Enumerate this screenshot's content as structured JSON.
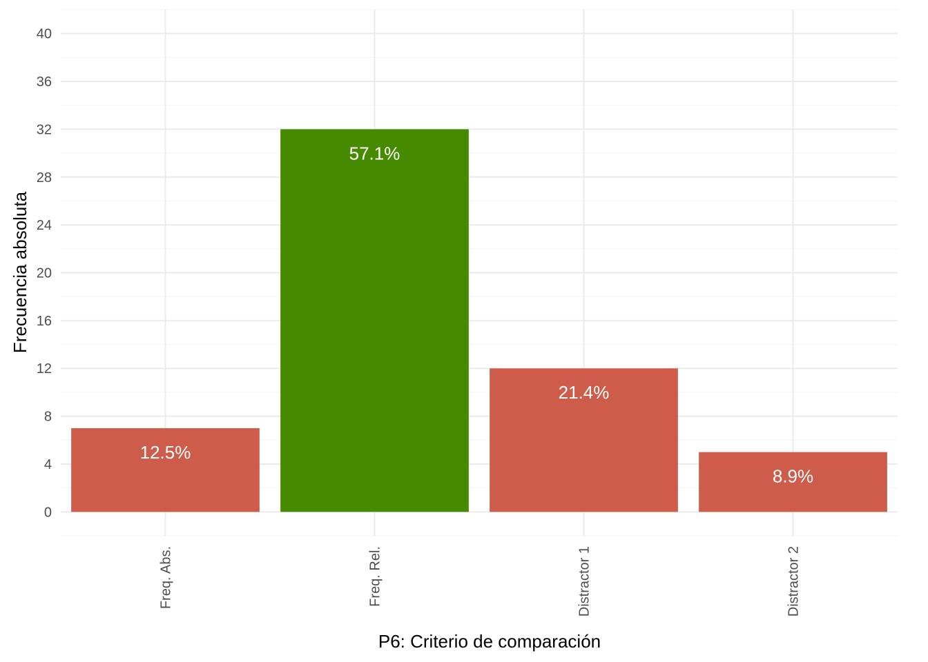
{
  "chart_data": {
    "type": "bar",
    "title": "",
    "xlabel": "P6: Criterio de comparación",
    "ylabel": "Frecuencia absoluta",
    "categories": [
      "Freq. Abs.",
      "Freq. Rel.",
      "Distractor 1",
      "Distractor 2"
    ],
    "values": [
      7,
      32,
      12,
      5
    ],
    "labels": [
      "12.5%",
      "57.1%",
      "21.4%",
      "8.9%"
    ],
    "bar_colors": [
      "#CD5C4B",
      "#468A00",
      "#CD5C4B",
      "#CD5C4B"
    ],
    "ylim": [
      -2,
      42
    ],
    "yticks": [
      0,
      4,
      8,
      12,
      16,
      20,
      24,
      28,
      32,
      36,
      40
    ],
    "ytick_labels": [
      "0",
      "4",
      "8",
      "12",
      "16",
      "20",
      "24",
      "28",
      "32",
      "36",
      "40"
    ],
    "grid": true,
    "legend": "none"
  },
  "colors": {
    "background": "#ffffff",
    "grid_major": "#ebebeb",
    "grid_minor": "#f5f5f5",
    "tick_text": "#4d4d4d",
    "label_text": "#ffffff"
  }
}
